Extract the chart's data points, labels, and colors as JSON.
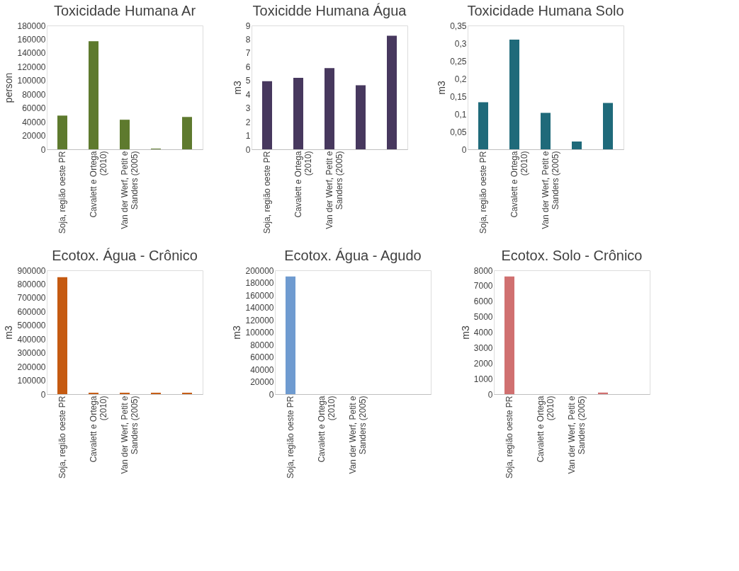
{
  "chart_data": [
    {
      "type": "bar",
      "title": "Toxicidade Humana Ar",
      "ylabel": "person",
      "categories": [
        "Soja, região oeste PR",
        "Cavalett e Ortega (2010)",
        "Van der Werf, Petit e Sanders (2005)",
        null,
        null
      ],
      "values": [
        49000,
        157000,
        43000,
        1000,
        47000
      ],
      "color": "#5e7a2e",
      "ylim": [
        0,
        180000
      ],
      "yticks": [
        0,
        20000,
        40000,
        60000,
        80000,
        100000,
        120000,
        140000,
        160000,
        180000
      ]
    },
    {
      "type": "bar",
      "title": "Toxicidde Humana Água",
      "ylabel": "m3",
      "categories": [
        "Soja, região oeste PR",
        "Cavalett e Ortega (2010)",
        "Van der Werf, Petit e Sanders (2005)",
        null,
        null
      ],
      "values": [
        4.95,
        5.2,
        5.9,
        4.65,
        8.25
      ],
      "color": "#47385e",
      "ylim": [
        0,
        9
      ],
      "yticks": [
        0,
        1,
        2,
        3,
        4,
        5,
        6,
        7,
        8,
        9
      ]
    },
    {
      "type": "bar",
      "title": "Toxicidade Humana Solo",
      "ylabel": "m3",
      "categories": [
        "Soja, região oeste PR",
        "Cavalett e Ortega (2010)",
        "Van der Werf, Petit e Sanders (2005)",
        null,
        null
      ],
      "values": [
        0.133,
        0.31,
        0.103,
        0.022,
        0.131
      ],
      "color": "#1f6a7a",
      "ylim": [
        0,
        0.35
      ],
      "yticks": [
        0,
        {
          "value": 0.05,
          "label": "0,05"
        },
        {
          "value": 0.1,
          "label": "0,1"
        },
        {
          "value": 0.15,
          "label": "0,15"
        },
        {
          "value": 0.2,
          "label": "0,2"
        },
        {
          "value": 0.25,
          "label": "0,25"
        },
        {
          "value": 0.3,
          "label": "0,3"
        },
        {
          "value": 0.35,
          "label": "0,35"
        }
      ]
    },
    {
      "type": "bar",
      "title": "Ecotox. Água - Crônico",
      "ylabel": "m3",
      "categories": [
        "Soja, região oeste PR",
        "Cavalett e Ortega (2010)",
        "Van der Werf, Petit e Sanders (2005)",
        null,
        null
      ],
      "values": [
        850000,
        10000,
        10000,
        10000,
        10000
      ],
      "color": "#c55a11",
      "ylim": [
        0,
        900000
      ],
      "yticks": [
        0,
        100000,
        200000,
        300000,
        400000,
        500000,
        600000,
        700000,
        800000,
        900000
      ]
    },
    {
      "type": "bar",
      "title": "Ecotox. Água - Agudo",
      "ylabel": "m3",
      "categories": [
        "Soja, região oeste PR",
        "Cavalett e Ortega (2010)",
        "Van der Werf, Petit e Sanders (2005)",
        null,
        null
      ],
      "values": [
        190000,
        0,
        0,
        0,
        0
      ],
      "color": "#6f9bd0",
      "ylim": [
        0,
        200000
      ],
      "yticks": [
        0,
        20000,
        40000,
        60000,
        80000,
        100000,
        120000,
        140000,
        160000,
        180000,
        200000
      ]
    },
    {
      "type": "bar",
      "title": "Ecotox. Solo - Crônico",
      "ylabel": "m3",
      "categories": [
        "Soja, região oeste PR",
        "Cavalett e Ortega (2010)",
        "Van der Werf, Petit e Sanders (2005)",
        null,
        null
      ],
      "values": [
        7600,
        0,
        0,
        100,
        0
      ],
      "color": "#d07070",
      "ylim": [
        0,
        8000
      ],
      "yticks": [
        0,
        1000,
        2000,
        3000,
        4000,
        5000,
        6000,
        7000,
        8000
      ]
    }
  ]
}
